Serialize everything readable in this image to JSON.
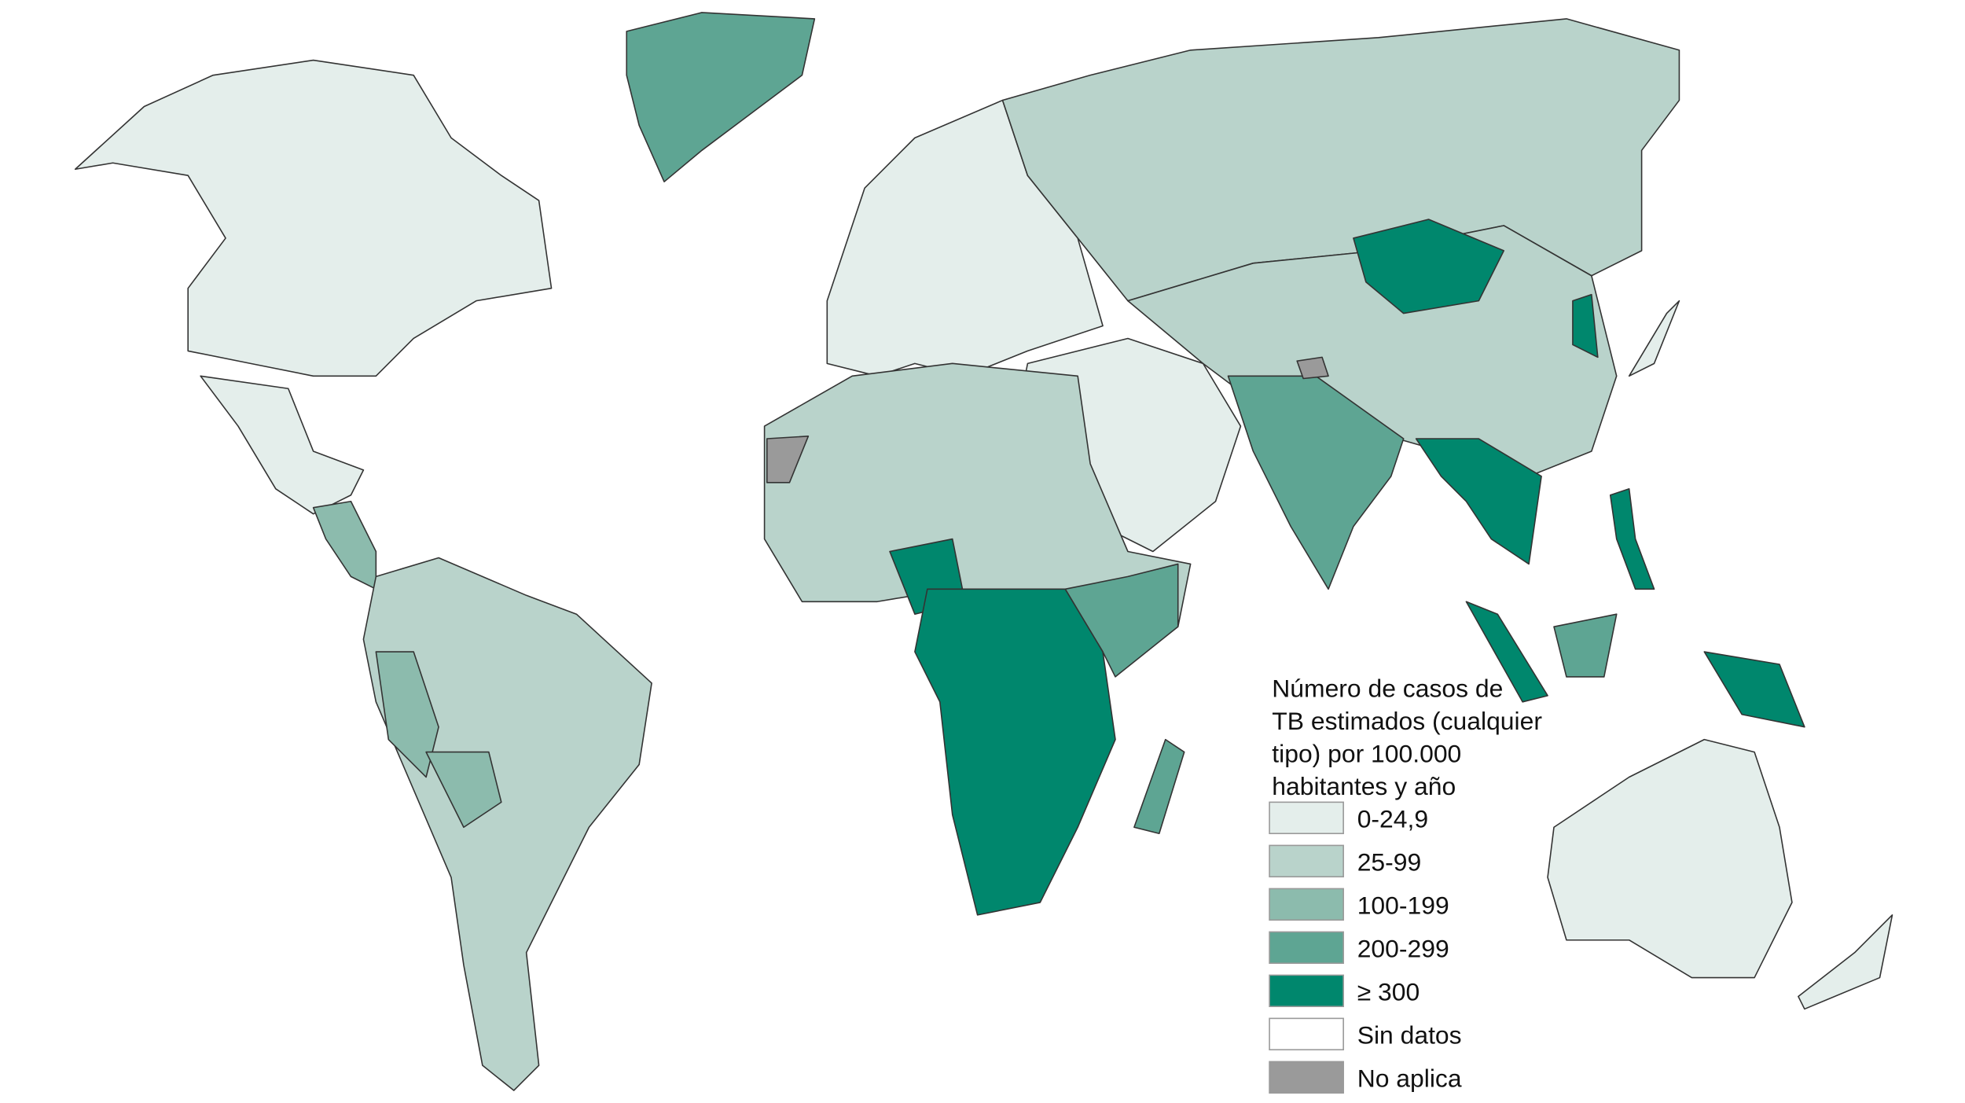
{
  "legend": {
    "title_lines": [
      "Número de casos de",
      "TB estimados (cualquier",
      "tipo) por 100.000",
      "habitantes y año"
    ],
    "items": [
      {
        "label": "0-24,9",
        "color": "#e4eeeb"
      },
      {
        "label": "25-99",
        "color": "#b9d3cb"
      },
      {
        "label": "100-199",
        "color": "#8cbbad"
      },
      {
        "label": "200-299",
        "color": "#5ea593"
      },
      {
        "label": "≥ 300",
        "color": "#00876d"
      },
      {
        "label": "Sin datos",
        "color": "#ffffff"
      },
      {
        "label": "No aplica",
        "color": "#9a9a9a"
      }
    ]
  }
}
